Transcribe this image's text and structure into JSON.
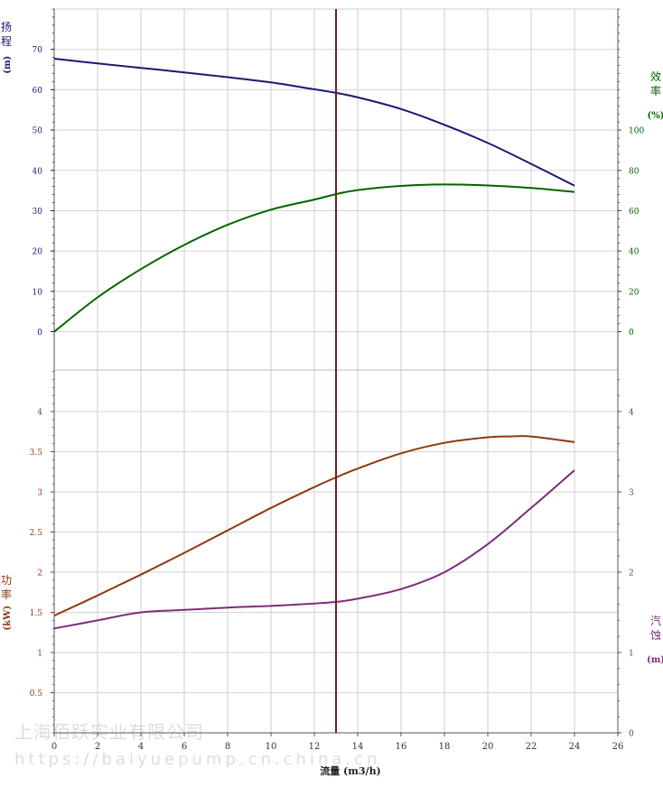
{
  "chart_data": {
    "type": "line",
    "xlabel": "流量 (m3/h)",
    "xlim": [
      0,
      26
    ],
    "x_ticks": [
      0,
      2,
      4,
      6,
      8,
      10,
      12,
      14,
      16,
      18,
      20,
      22,
      24,
      26
    ],
    "x_tick_labels": [
      "0",
      "2",
      "4",
      "6",
      "8",
      "10",
      "12",
      "14",
      "16",
      "18",
      "20",
      "22",
      "24",
      "26"
    ],
    "operating_point_x": 13,
    "grid": true,
    "panels": [
      {
        "name": "upper",
        "axes": [
          {
            "id": "head",
            "side": "left",
            "label": "扬程",
            "unit": "(m)",
            "color": "#1a1a6e",
            "ylim": [
              0,
              80
            ],
            "ticks": [
              0,
              10,
              20,
              30,
              40,
              50,
              60,
              70
            ],
            "tick_labels": [
              "0",
              "10",
              "20",
              "30",
              "40",
              "50",
              "60",
              "70"
            ]
          },
          {
            "id": "efficiency",
            "side": "right",
            "label": "效率",
            "unit": "(%)",
            "color": "#006400",
            "ylim": [
              0,
              160
            ],
            "ticks": [
              0,
              20,
              40,
              60,
              80,
              100
            ],
            "tick_labels": [
              "0",
              "20",
              "40",
              "60",
              "80",
              "100"
            ]
          }
        ],
        "series": [
          {
            "axis": "head",
            "color": "#1a1a6e",
            "x": [
              0,
              2,
              4,
              6,
              8,
              10,
              12,
              13,
              14,
              16,
              18,
              20,
              22,
              24
            ],
            "y": [
              67.7,
              66.5,
              65.4,
              64.3,
              63.1,
              61.8,
              60.1,
              59.2,
              58.1,
              55.2,
              51.3,
              46.8,
              41.6,
              36.2
            ]
          },
          {
            "axis": "efficiency",
            "color": "#006400",
            "x": [
              0,
              2,
              4,
              6,
              8,
              10,
              12,
              13,
              14,
              16,
              18,
              20,
              22,
              24
            ],
            "y": [
              0,
              17,
              31,
              43,
              53,
              60.5,
              65.5,
              68.2,
              70.2,
              72.3,
              73,
              72.5,
              71.3,
              69.3
            ]
          }
        ]
      },
      {
        "name": "lower",
        "axes": [
          {
            "id": "power",
            "side": "left",
            "label": "功率",
            "unit": "(kW)",
            "color": "#8b3a10",
            "ylim": [
              0,
              4.5
            ],
            "ticks": [
              0.5,
              1,
              1.5,
              2,
              2.5,
              3,
              3.5,
              4
            ],
            "tick_labels": [
              "0.5",
              "1",
              "1.5",
              "2",
              "2.5",
              "3",
              "3.5",
              "4"
            ]
          },
          {
            "id": "npsh",
            "side": "right",
            "label": "汽蚀",
            "unit": "(m)",
            "color": "#7b2d7b",
            "ylim": [
              0,
              4.5
            ],
            "ticks": [
              0,
              1,
              2,
              3,
              4
            ],
            "tick_labels": [
              "0",
              "1",
              "2",
              "3",
              "4"
            ]
          }
        ],
        "series": [
          {
            "axis": "power",
            "color": "#8b3a10",
            "x": [
              0,
              2,
              4,
              6,
              8,
              10,
              12,
              13,
              14,
              16,
              18,
              20,
              21,
              22,
              24
            ],
            "y": [
              1.46,
              1.71,
              1.97,
              2.24,
              2.52,
              2.8,
              3.06,
              3.18,
              3.29,
              3.48,
              3.61,
              3.68,
              3.69,
              3.69,
              3.62
            ]
          },
          {
            "axis": "npsh",
            "color": "#7b2d7b",
            "x": [
              0,
              2,
              4,
              6,
              8,
              10,
              12,
              13,
              14,
              16,
              18,
              20,
              22,
              24
            ],
            "y": [
              1.3,
              1.4,
              1.5,
              1.53,
              1.56,
              1.58,
              1.61,
              1.63,
              1.67,
              1.79,
              2.0,
              2.35,
              2.8,
              3.27
            ]
          }
        ]
      }
    ]
  },
  "watermark": {
    "company": "上海佰跃实业有限公司",
    "url": "https://baiyuepump.cn.china.cn"
  }
}
